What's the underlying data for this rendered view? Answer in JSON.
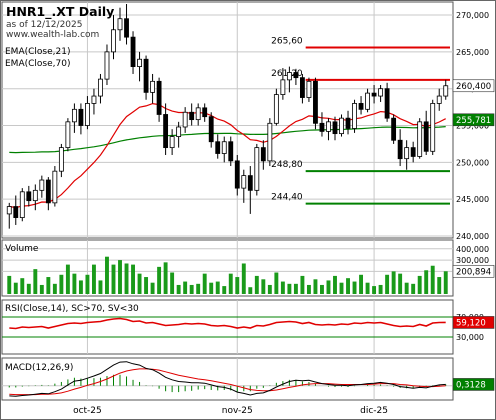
{
  "header": {
    "symbol_title": "HNR1_.XT Daily",
    "as_of": "as of 12/12/2025",
    "source": "www.wealth-lab.com"
  },
  "colors": {
    "up_candle": "#ffffff",
    "down_candle": "#000000",
    "ema_fast": "#e00000",
    "ema_slow": "#008000",
    "resistance": "#e00000",
    "support": "#008000",
    "volume_bar": "#1a9a1a",
    "rsi_line": "#e00000",
    "rsi_band": "#008000",
    "macd_line": "#000000",
    "macd_signal": "#e00000",
    "macd_hist": "#008000",
    "grid": "#c8c8c8",
    "label_box": "#008000"
  },
  "chart_data": [
    {
      "type": "candlestick",
      "title": "HNR1_.XT Daily",
      "subtitle": "as of 12/12/2025",
      "legend": [
        "EMA(Close,21)",
        "EMA(Close,70)"
      ],
      "legend_position": "top-left",
      "ylim": [
        240000,
        271500
      ],
      "y_ticks": [
        240000,
        245000,
        250000,
        255000,
        260000,
        265000,
        270000
      ],
      "y_tick_labels": [
        "240,000",
        "245,000",
        "250,000",
        "255,000",
        "260,000",
        "265,000",
        "270,000"
      ],
      "x_tick_labels": [
        {
          "label": "oct-25",
          "bar": 12
        },
        {
          "label": "nov-25",
          "bar": 35
        },
        {
          "label": "dic-25",
          "bar": 56
        }
      ],
      "grid": true,
      "current_price": {
        "value": 260400,
        "label": "260,400"
      },
      "ema_slow_last": {
        "value": 255781,
        "label": "255,781"
      },
      "levels": [
        {
          "value": 265600,
          "label": "265,60",
          "color": "red",
          "from_bar": 46
        },
        {
          "value": 261200,
          "label": "261,20",
          "color": "red",
          "from_bar": 46
        },
        {
          "value": 248800,
          "label": "248,80",
          "color": "green",
          "from_bar": 46
        },
        {
          "value": 244400,
          "label": "244,40",
          "color": "green",
          "from_bar": 46
        }
      ],
      "candles": [
        {
          "o": 243000,
          "h": 244500,
          "l": 241000,
          "c": 244000
        },
        {
          "o": 244000,
          "h": 245500,
          "l": 241500,
          "c": 242500
        },
        {
          "o": 242500,
          "h": 246500,
          "l": 242000,
          "c": 246000
        },
        {
          "o": 246000,
          "h": 246800,
          "l": 244000,
          "c": 244800
        },
        {
          "o": 244800,
          "h": 247000,
          "l": 243500,
          "c": 246200
        },
        {
          "o": 246200,
          "h": 248200,
          "l": 245200,
          "c": 247600
        },
        {
          "o": 247600,
          "h": 248000,
          "l": 243500,
          "c": 244500
        },
        {
          "o": 244500,
          "h": 249500,
          "l": 244000,
          "c": 248800
        },
        {
          "o": 248800,
          "h": 252500,
          "l": 248000,
          "c": 252000
        },
        {
          "o": 252000,
          "h": 256000,
          "l": 251500,
          "c": 255500
        },
        {
          "o": 255500,
          "h": 258000,
          "l": 254000,
          "c": 257200
        },
        {
          "o": 257200,
          "h": 258000,
          "l": 253800,
          "c": 255000
        },
        {
          "o": 255000,
          "h": 259000,
          "l": 254500,
          "c": 258000
        },
        {
          "o": 258000,
          "h": 260000,
          "l": 256500,
          "c": 259000
        },
        {
          "o": 259000,
          "h": 262000,
          "l": 258000,
          "c": 261300
        },
        {
          "o": 261300,
          "h": 266000,
          "l": 260500,
          "c": 265000
        },
        {
          "o": 265000,
          "h": 270000,
          "l": 264000,
          "c": 268000
        },
        {
          "o": 268000,
          "h": 271000,
          "l": 266500,
          "c": 269500
        },
        {
          "o": 269500,
          "h": 271500,
          "l": 266000,
          "c": 267000
        },
        {
          "o": 267000,
          "h": 267800,
          "l": 262000,
          "c": 263000
        },
        {
          "o": 263000,
          "h": 265000,
          "l": 261000,
          "c": 264000
        },
        {
          "o": 264000,
          "h": 264500,
          "l": 258500,
          "c": 259500
        },
        {
          "o": 259500,
          "h": 262000,
          "l": 258000,
          "c": 261000
        },
        {
          "o": 261000,
          "h": 261500,
          "l": 255500,
          "c": 256500
        },
        {
          "o": 256500,
          "h": 258000,
          "l": 251000,
          "c": 252000
        },
        {
          "o": 252000,
          "h": 254500,
          "l": 251000,
          "c": 253500
        },
        {
          "o": 253500,
          "h": 255500,
          "l": 252000,
          "c": 254800
        },
        {
          "o": 254800,
          "h": 257500,
          "l": 254000,
          "c": 256800
        },
        {
          "o": 256800,
          "h": 258000,
          "l": 255000,
          "c": 255800
        },
        {
          "o": 255800,
          "h": 258000,
          "l": 255000,
          "c": 257400
        },
        {
          "o": 257400,
          "h": 258000,
          "l": 255500,
          "c": 256200
        },
        {
          "o": 256200,
          "h": 256800,
          "l": 252000,
          "c": 252800
        },
        {
          "o": 252800,
          "h": 253800,
          "l": 250500,
          "c": 251200
        },
        {
          "o": 251200,
          "h": 253500,
          "l": 250000,
          "c": 252800
        },
        {
          "o": 252800,
          "h": 253500,
          "l": 249500,
          "c": 250200
        },
        {
          "o": 250200,
          "h": 251000,
          "l": 245500,
          "c": 246500
        },
        {
          "o": 246500,
          "h": 249000,
          "l": 244500,
          "c": 248200
        },
        {
          "o": 248200,
          "h": 249500,
          "l": 243000,
          "c": 246200
        },
        {
          "o": 246200,
          "h": 252500,
          "l": 245500,
          "c": 252000
        },
        {
          "o": 252000,
          "h": 253000,
          "l": 249000,
          "c": 250200
        },
        {
          "o": 250200,
          "h": 256000,
          "l": 249500,
          "c": 255300
        },
        {
          "o": 255300,
          "h": 260000,
          "l": 255000,
          "c": 259200
        },
        {
          "o": 259200,
          "h": 262800,
          "l": 258500,
          "c": 261200
        },
        {
          "o": 261200,
          "h": 263000,
          "l": 259500,
          "c": 262200
        },
        {
          "o": 262200,
          "h": 262700,
          "l": 260500,
          "c": 261500
        },
        {
          "o": 261500,
          "h": 262000,
          "l": 258000,
          "c": 258800
        },
        {
          "o": 258800,
          "h": 261500,
          "l": 258200,
          "c": 261000
        },
        {
          "o": 261000,
          "h": 261500,
          "l": 254500,
          "c": 255300
        },
        {
          "o": 255300,
          "h": 256800,
          "l": 253500,
          "c": 254200
        },
        {
          "o": 254200,
          "h": 256000,
          "l": 253000,
          "c": 255500
        },
        {
          "o": 255500,
          "h": 256200,
          "l": 253000,
          "c": 253900
        },
        {
          "o": 253900,
          "h": 256500,
          "l": 253500,
          "c": 256000
        },
        {
          "o": 256000,
          "h": 257000,
          "l": 253800,
          "c": 254600
        },
        {
          "o": 254600,
          "h": 258500,
          "l": 254000,
          "c": 258000
        },
        {
          "o": 258000,
          "h": 259000,
          "l": 256500,
          "c": 257200
        },
        {
          "o": 257200,
          "h": 260000,
          "l": 256800,
          "c": 259400
        },
        {
          "o": 259400,
          "h": 260500,
          "l": 258000,
          "c": 259000
        },
        {
          "o": 259000,
          "h": 260500,
          "l": 258200,
          "c": 260000
        },
        {
          "o": 260000,
          "h": 260800,
          "l": 255500,
          "c": 256000
        },
        {
          "o": 256000,
          "h": 256500,
          "l": 252500,
          "c": 253000
        },
        {
          "o": 253000,
          "h": 254500,
          "l": 249500,
          "c": 250500
        },
        {
          "o": 250500,
          "h": 253000,
          "l": 249000,
          "c": 252000
        },
        {
          "o": 252000,
          "h": 252800,
          "l": 250000,
          "c": 250800
        },
        {
          "o": 250800,
          "h": 256000,
          "l": 250500,
          "c": 255500
        },
        {
          "o": 255500,
          "h": 257000,
          "l": 251000,
          "c": 251500
        },
        {
          "o": 251500,
          "h": 258500,
          "l": 251000,
          "c": 258000
        },
        {
          "o": 258000,
          "h": 260000,
          "l": 257000,
          "c": 259000
        },
        {
          "o": 259000,
          "h": 261200,
          "l": 258500,
          "c": 260400
        }
      ]
    },
    {
      "type": "bar",
      "title": "Volume",
      "ylim": [
        0,
        460000
      ],
      "y_ticks": [
        200000,
        300000,
        400000
      ],
      "y_tick_labels": [
        "200,000",
        "300,000",
        "400,000"
      ],
      "last": {
        "value": 200894,
        "label": "200,894"
      },
      "values": [
        160000,
        100000,
        140000,
        90000,
        220000,
        80000,
        150000,
        90000,
        170000,
        260000,
        180000,
        120000,
        170000,
        260000,
        120000,
        330000,
        260000,
        300000,
        270000,
        260000,
        180000,
        150000,
        100000,
        240000,
        280000,
        190000,
        80000,
        110000,
        80000,
        90000,
        180000,
        100000,
        110000,
        70000,
        180000,
        150000,
        270000,
        60000,
        160000,
        130000,
        80000,
        190000,
        110000,
        90000,
        90000,
        160000,
        80000,
        130000,
        80000,
        120000,
        160000,
        100000,
        140000,
        110000,
        170000,
        100000,
        70000,
        80000,
        170000,
        200000,
        180000,
        100000,
        90000,
        160000,
        210000,
        250000,
        150000,
        200894
      ]
    },
    {
      "type": "line",
      "title": "RSI(Close,14), SC>70, SV<30",
      "ylim": [
        0,
        100
      ],
      "y_ticks": [
        30,
        70
      ],
      "y_tick_labels": [
        "30,000",
        "70,000"
      ],
      "bands": [
        70,
        30
      ],
      "last": {
        "value": 59.12,
        "label": "59,120"
      },
      "values": [
        48,
        47,
        50,
        49,
        50,
        51,
        48,
        51,
        54,
        57,
        58,
        57,
        59,
        60,
        61,
        64,
        66,
        67,
        65,
        61,
        62,
        58,
        59,
        56,
        53,
        54,
        55,
        57,
        56,
        57,
        56,
        53,
        52,
        53,
        51,
        48,
        50,
        48,
        53,
        52,
        55,
        59,
        60,
        61,
        60,
        57,
        59,
        55,
        54,
        55,
        54,
        56,
        55,
        58,
        57,
        59,
        58,
        59,
        56,
        53,
        51,
        52,
        51,
        55,
        52,
        58,
        59,
        59.12
      ]
    },
    {
      "type": "line",
      "title": "MACD(12,26,9)",
      "last": {
        "value": 0.3128,
        "label": "0,3128"
      },
      "macd": [
        -2.4,
        -2.5,
        -2.3,
        -2.2,
        -2.0,
        -1.8,
        -1.9,
        -1.4,
        -0.8,
        0.2,
        1.1,
        1.3,
        1.8,
        2.3,
        2.9,
        3.9,
        4.9,
        5.6,
        5.7,
        5.2,
        4.9,
        4.1,
        3.8,
        3.0,
        2.0,
        1.4,
        1.0,
        0.9,
        0.7,
        0.7,
        0.6,
        0.2,
        -0.2,
        -0.4,
        -0.8,
        -1.5,
        -1.8,
        -2.2,
        -1.8,
        -1.7,
        -1.1,
        -0.3,
        0.4,
        1.0,
        1.3,
        1.2,
        1.3,
        0.9,
        0.5,
        0.3,
        0.1,
        0.1,
        0.0,
        0.2,
        0.3,
        0.5,
        0.6,
        0.8,
        0.6,
        0.3,
        -0.2,
        -0.4,
        -0.6,
        -0.4,
        -0.5,
        -0.1,
        0.2,
        0.3128
      ],
      "signal": [
        -2.0,
        -2.1,
        -2.1,
        -2.1,
        -2.1,
        -2.0,
        -2.0,
        -1.9,
        -1.7,
        -1.3,
        -0.8,
        -0.4,
        0.1,
        0.5,
        1.0,
        1.6,
        2.3,
        3.0,
        3.5,
        3.8,
        4.0,
        4.0,
        3.9,
        3.7,
        3.3,
        2.9,
        2.5,
        2.2,
        1.9,
        1.6,
        1.4,
        1.2,
        0.9,
        0.6,
        0.3,
        -0.1,
        -0.5,
        -0.9,
        -1.1,
        -1.2,
        -1.2,
        -1.0,
        -0.7,
        -0.4,
        -0.1,
        0.2,
        0.4,
        0.5,
        0.5,
        0.5,
        0.4,
        0.3,
        0.3,
        0.3,
        0.3,
        0.3,
        0.4,
        0.5,
        0.5,
        0.5,
        0.3,
        0.2,
        0.0,
        -0.1,
        -0.2,
        -0.2,
        -0.1,
        0.0
      ]
    }
  ]
}
